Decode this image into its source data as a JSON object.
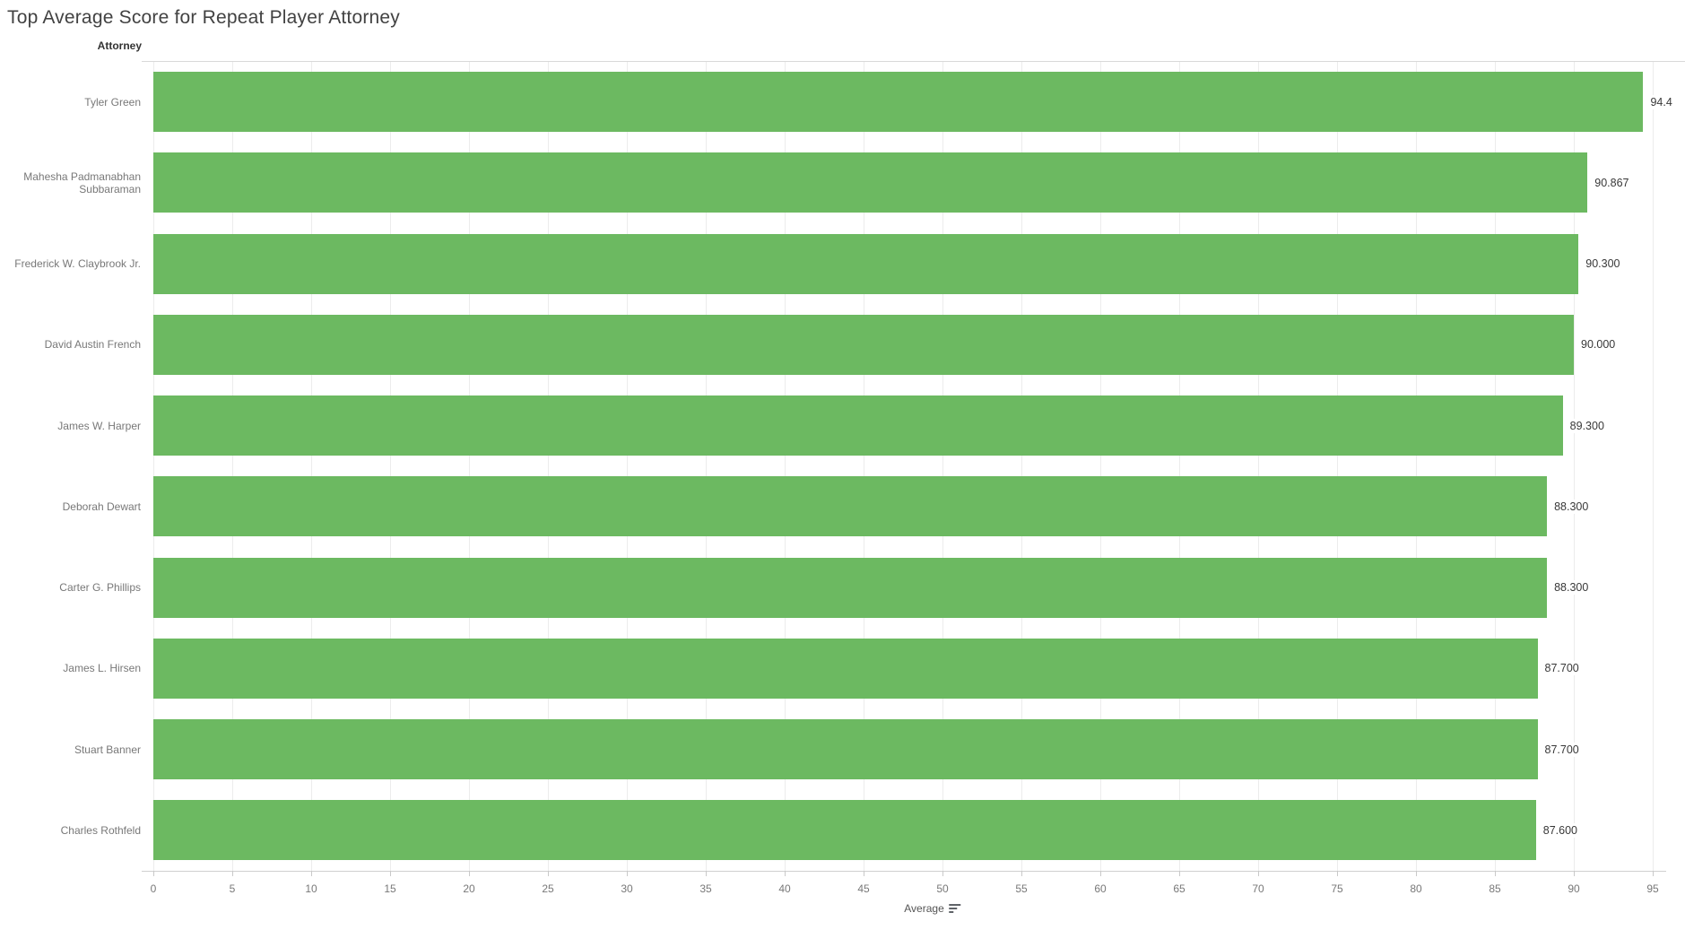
{
  "title": "Top Average Score for Repeat Player Attorney",
  "row_axis_header": "Attorney",
  "x_axis": {
    "title": "Average",
    "sort_icon": "sort-descending-icon",
    "ticks": [
      0,
      5,
      10,
      15,
      20,
      25,
      30,
      35,
      40,
      45,
      50,
      55,
      60,
      65,
      70,
      75,
      80,
      85,
      90,
      95
    ]
  },
  "colors": {
    "bar": "#6CB961",
    "gridline": "#ececec",
    "axis_line": "#d0d0d0",
    "title_text": "#424242",
    "label_text": "#787878",
    "value_text": "#383838"
  },
  "chart_data": {
    "type": "bar",
    "orientation": "horizontal",
    "title": "Top Average Score for Repeat Player Attorney",
    "xlabel": "Average",
    "ylabel": "Attorney",
    "xlim": [
      0,
      95
    ],
    "grid": true,
    "legend": false,
    "categories": [
      "Tyler Green",
      "Mahesha Padmanabhan Subbaraman",
      "Frederick W. Claybrook Jr.",
      "David Austin French",
      "James W. Harper",
      "Deborah Dewart",
      "Carter G. Phillips",
      "James L. Hirsen",
      "Stuart Banner",
      "Charles Rothfeld"
    ],
    "values": [
      94.4,
      90.867,
      90.3,
      90.0,
      89.3,
      88.3,
      88.3,
      87.7,
      87.7,
      87.6
    ],
    "value_labels": [
      "94.4",
      "90.867",
      "90.300",
      "90.000",
      "89.300",
      "88.300",
      "88.300",
      "87.700",
      "87.700",
      "87.600"
    ]
  }
}
